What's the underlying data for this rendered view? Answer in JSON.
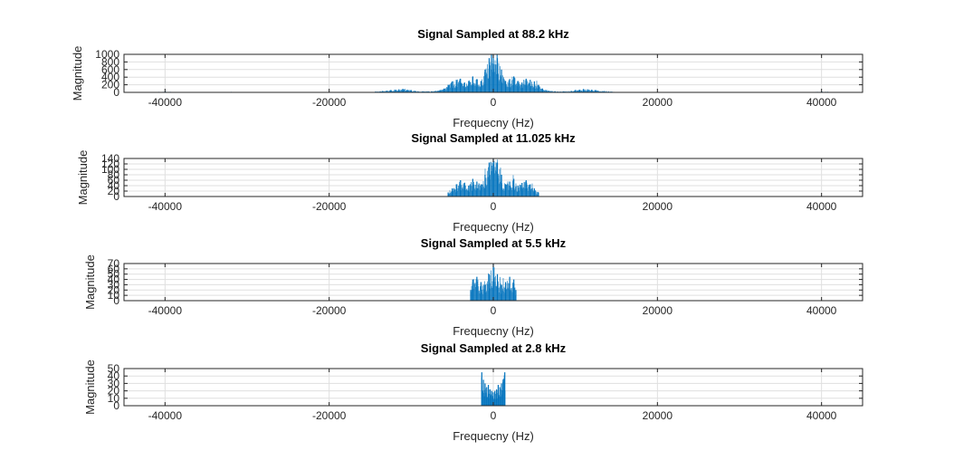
{
  "chart_data": [
    {
      "type": "bar",
      "title": "Signal Sampled at 88.2 kHz",
      "xlabel": "Frequecny (Hz)",
      "ylabel": "Magnitude",
      "xlim": [
        -45000,
        45000
      ],
      "ylim": [
        0,
        1000
      ],
      "xticks": [
        -40000,
        -20000,
        0,
        20000,
        40000
      ],
      "yticks": [
        0,
        200,
        400,
        600,
        800,
        1000
      ],
      "grid": true,
      "color": "#0072BD",
      "series": [
        {
          "x": [
            -44000,
            -41500,
            -40000,
            -38000,
            -35000,
            -32000,
            -30000,
            -25000,
            -20000,
            -15000,
            -13500,
            -12500,
            -12000,
            -11500,
            -11000,
            -10500,
            -10000,
            -9500,
            -8500,
            -7500,
            -6500,
            -6000,
            -5500,
            -5000,
            -4500,
            -4000,
            -3500,
            -3000,
            -2500,
            -2000,
            -1500,
            -1000,
            -500,
            0,
            500,
            1000,
            1500,
            2000,
            2500,
            3000,
            3500,
            4000,
            4500,
            5000,
            5500,
            6000,
            6500,
            7500,
            8500,
            9500,
            10000,
            10500,
            11000,
            11500,
            12000,
            12500,
            13500,
            15000,
            20000,
            25000,
            30000,
            32000,
            35000,
            38000,
            40000,
            41500,
            44000
          ],
          "y": [
            4,
            7,
            20,
            5,
            6,
            12,
            6,
            4,
            5,
            10,
            35,
            60,
            70,
            80,
            90,
            70,
            60,
            40,
            25,
            30,
            60,
            100,
            200,
            290,
            330,
            360,
            260,
            300,
            420,
            350,
            300,
            600,
            900,
            1000,
            900,
            600,
            300,
            350,
            420,
            300,
            260,
            360,
            330,
            290,
            200,
            100,
            60,
            30,
            25,
            40,
            60,
            70,
            90,
            80,
            70,
            60,
            35,
            10,
            5,
            4,
            6,
            12,
            6,
            5,
            20,
            7,
            4
          ]
        }
      ]
    },
    {
      "type": "bar",
      "title": "Signal Sampled at 11.025 kHz",
      "xlabel": "Frequecny (Hz)",
      "ylabel": "Magnitude",
      "xlim": [
        -45000,
        45000
      ],
      "ylim": [
        0,
        140
      ],
      "xticks": [
        -40000,
        -20000,
        0,
        20000,
        40000
      ],
      "yticks": [
        0,
        20,
        40,
        60,
        80,
        100,
        120,
        140
      ],
      "grid": true,
      "color": "#0072BD",
      "series": [
        {
          "x": [
            -5500,
            -5000,
            -4500,
            -4000,
            -3500,
            -3000,
            -2500,
            -2000,
            -1500,
            -1000,
            -500,
            0,
            500,
            1000,
            1500,
            2000,
            2500,
            3000,
            3500,
            4000,
            4500,
            5000,
            5500
          ],
          "y": [
            15,
            30,
            45,
            60,
            50,
            40,
            65,
            55,
            45,
            80,
            125,
            140,
            125,
            80,
            45,
            55,
            65,
            40,
            50,
            60,
            45,
            30,
            15
          ]
        }
      ]
    },
    {
      "type": "bar",
      "title": "Signal Sampled at 5.5 kHz",
      "xlabel": "Frequecny (Hz)",
      "ylabel": "Magnitude",
      "xlim": [
        -45000,
        45000
      ],
      "ylim": [
        0,
        70
      ],
      "xticks": [
        -40000,
        -20000,
        0,
        20000,
        40000
      ],
      "yticks": [
        0,
        10,
        20,
        30,
        40,
        50,
        60,
        70
      ],
      "grid": true,
      "color": "#0072BD",
      "series": [
        {
          "x": [
            -2750,
            -2500,
            -2000,
            -1500,
            -1000,
            -500,
            0,
            500,
            1000,
            1500,
            2000,
            2500,
            2750
          ],
          "y": [
            20,
            40,
            45,
            35,
            30,
            50,
            70,
            50,
            30,
            35,
            45,
            40,
            20
          ]
        }
      ]
    },
    {
      "type": "bar",
      "title": "Signal Sampled at 2.8 kHz",
      "xlabel": "Frequecny (Hz)",
      "ylabel": "Magnitude",
      "xlim": [
        -45000,
        45000
      ],
      "ylim": [
        0,
        50
      ],
      "xticks": [
        -40000,
        -20000,
        0,
        20000,
        40000
      ],
      "yticks": [
        0,
        10,
        20,
        30,
        40,
        50
      ],
      "grid": true,
      "color": "#0072BD",
      "series": [
        {
          "x": [
            -1400,
            -1200,
            -1000,
            -800,
            -600,
            -400,
            -200,
            0,
            200,
            400,
            600,
            800,
            1000,
            1200,
            1400
          ],
          "y": [
            45,
            35,
            30,
            25,
            28,
            22,
            20,
            18,
            20,
            22,
            28,
            25,
            30,
            35,
            45
          ]
        }
      ]
    }
  ]
}
